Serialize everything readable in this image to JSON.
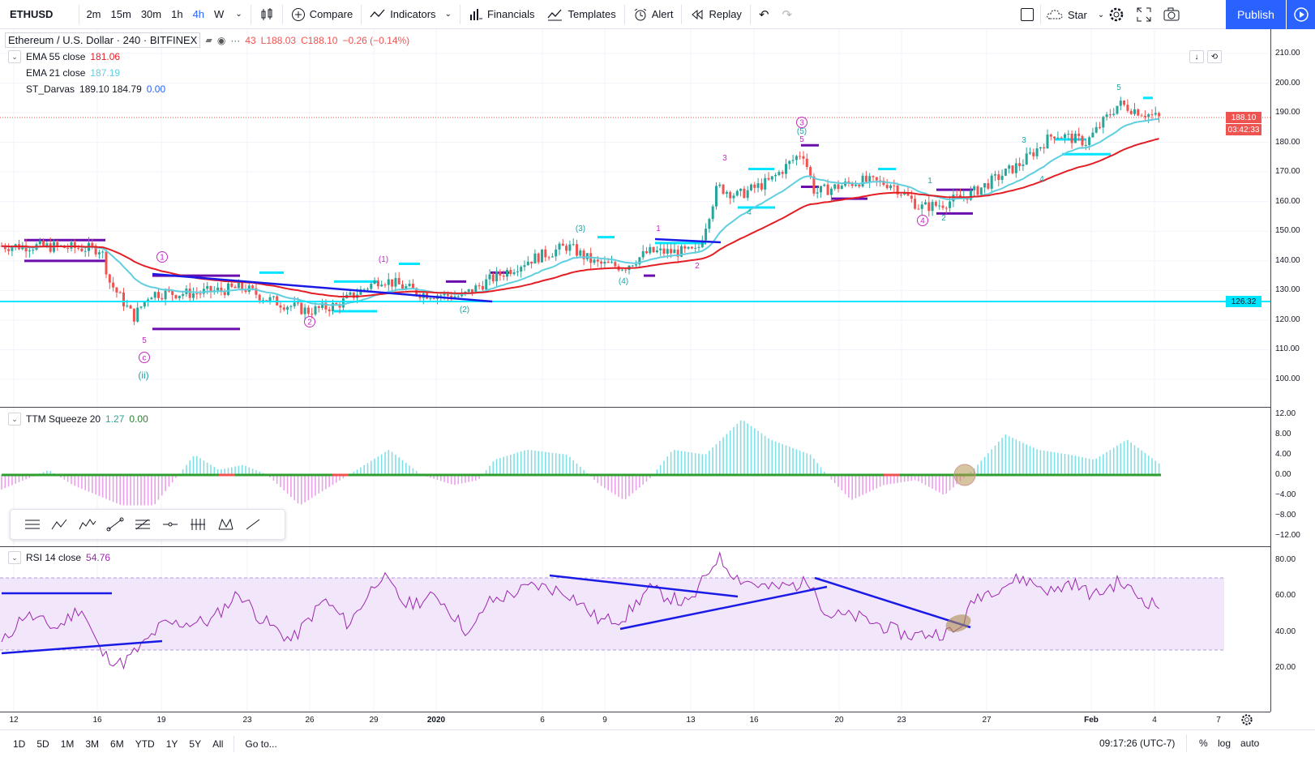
{
  "toolbar": {
    "symbol": "ETHUSD",
    "intervals": [
      "2m",
      "15m",
      "30m",
      "1h",
      "4h",
      "W"
    ],
    "active_interval": "4h",
    "compare": "Compare",
    "indicators": "Indicators",
    "financials": "Financials",
    "templates": "Templates",
    "alert": "Alert",
    "replay": "Replay",
    "layout_name": "Star",
    "publish": "Publish"
  },
  "main_legend": {
    "title": "Ethereum / U.S. Dollar · 240 · BITFINEX",
    "ohlc_tail": "43",
    "low": "L188.03",
    "close": "C188.10",
    "change": "−0.26 (−0.14%)",
    "ema55_label": "EMA 55 close",
    "ema55_value": "181.06",
    "ema21_label": "EMA 21 close",
    "ema21_value": "187.19",
    "darvas_label": "ST_Darvas",
    "darvas_values": "189.10 184.79",
    "darvas_extra": "0.00"
  },
  "ttm_legend": {
    "label": "TTM Squeeze 20",
    "value1": "1.27",
    "value2": "0.00"
  },
  "rsi_legend": {
    "label": "RSI 14 close",
    "value": "54.76"
  },
  "price_axis": {
    "main": [
      "210.00",
      "200.00",
      "190.00",
      "180.00",
      "170.00",
      "160.00",
      "150.00",
      "140.00",
      "130.00",
      "120.00",
      "110.00",
      "100.00"
    ],
    "current_price": "188.10",
    "countdown": "03:42:33",
    "hline_price": "126.32",
    "ttm": [
      "12.00",
      "8.00",
      "4.00",
      "0.00",
      "−4.00",
      "−8.00",
      "−12.00"
    ],
    "rsi": [
      "80.00",
      "60.00",
      "40.00",
      "20.00"
    ]
  },
  "time_axis": [
    "12",
    "16",
    "19",
    "23",
    "26",
    "29",
    "2020",
    "6",
    "9",
    "13",
    "16",
    "20",
    "23",
    "27",
    "Feb",
    "4",
    "7"
  ],
  "wave_labels": {
    "c1": "1",
    "c2": "2",
    "c3": "3",
    "c4": "4",
    "c5": "c",
    "ii": "(ii)",
    "five": "5",
    "p1": "(1)",
    "p2": "(2)",
    "p3": "(3)",
    "p4": "(4)",
    "p5": "(5)",
    "n1": "1",
    "n2": "2",
    "n3": "3",
    "n4": "4",
    "n5": "5"
  },
  "bottom_bar": {
    "ranges": [
      "1D",
      "5D",
      "1M",
      "3M",
      "6M",
      "YTD",
      "1Y",
      "5Y",
      "All"
    ],
    "goto": "Go to...",
    "clock": "09:17:26 (UTC-7)",
    "percent": "%",
    "log": "log",
    "auto": "auto"
  },
  "colors": {
    "ema55": "#e31e24",
    "ema21": "#5fcfdf",
    "up": "#26a69a",
    "down": "#ef5350",
    "hline": "#00e5ff",
    "trend": "#1a1ae6",
    "darvas_top": "#00e5ff",
    "darvas_bottom": "#6a0dad",
    "rsi": "#9c27b0",
    "rsi_band": "#f2e6fb",
    "accent": "#2962ff"
  }
}
